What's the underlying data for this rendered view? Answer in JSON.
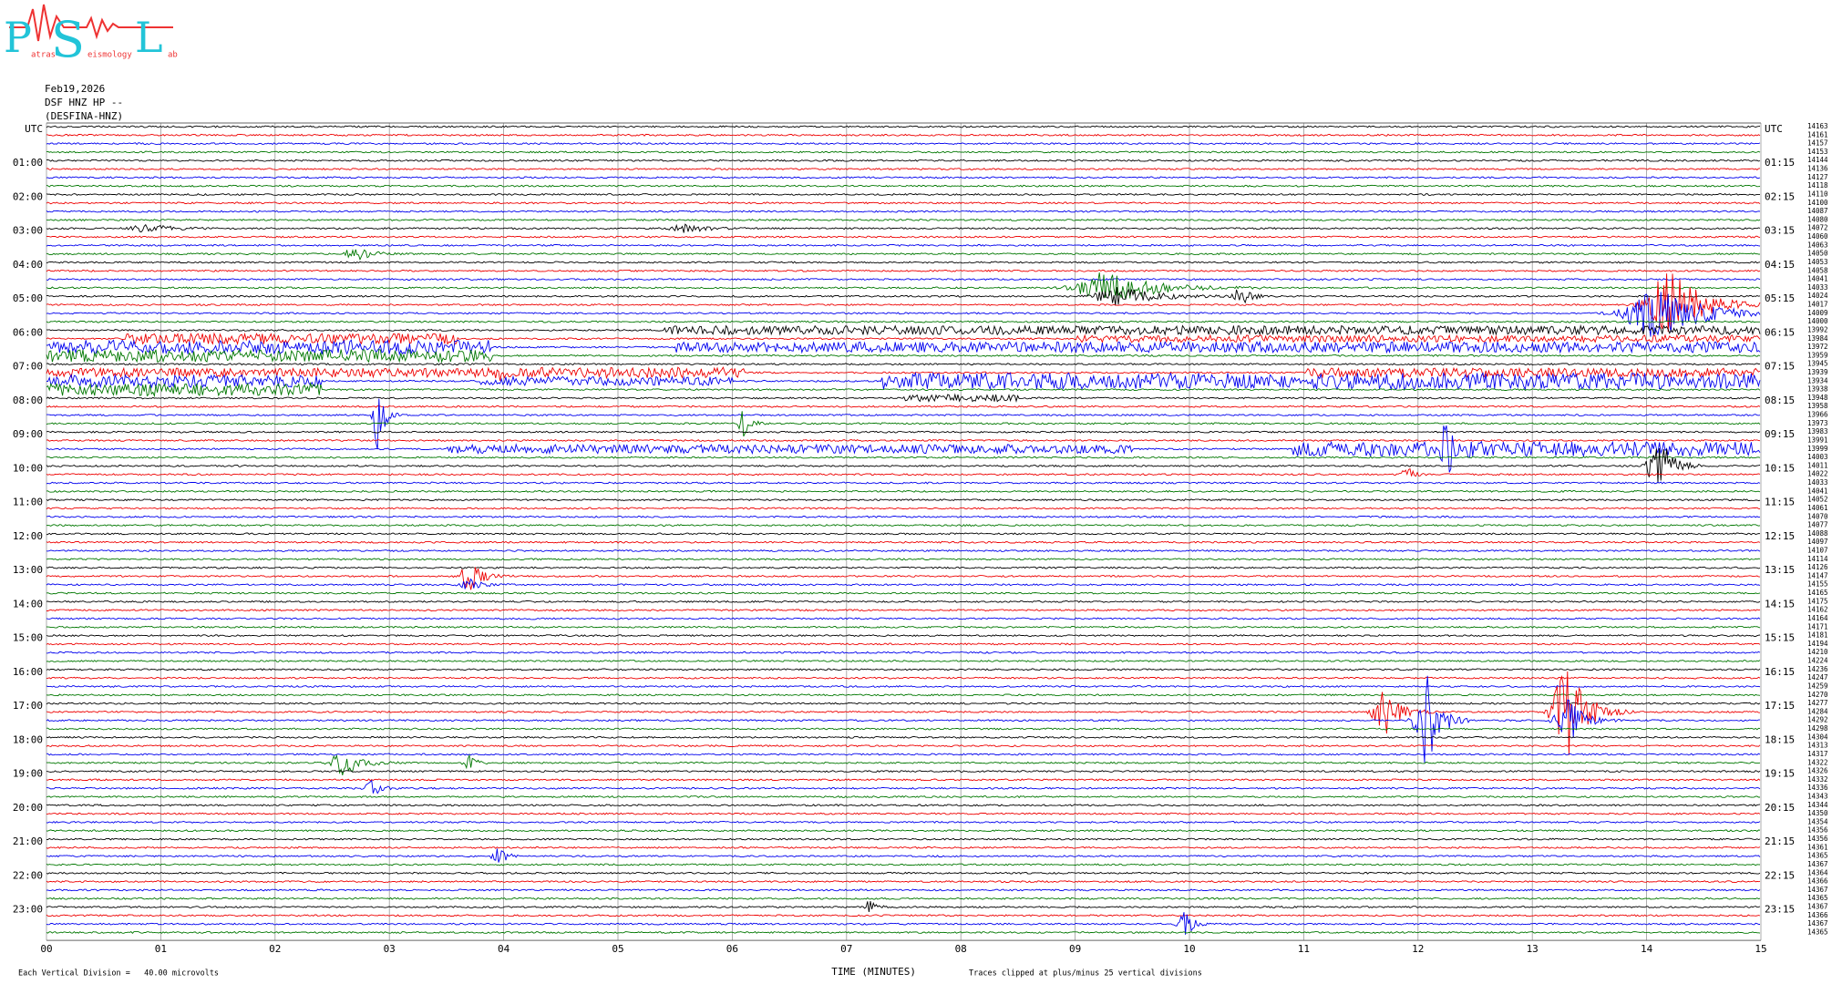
{
  "logo": {
    "big": [
      "P",
      "S",
      "L"
    ],
    "small": [
      "atras",
      "eismology",
      "ab"
    ]
  },
  "header": {
    "date": "Feb19,2026",
    "station": "DSF HNZ HP --",
    "name": "(DESFINA-HNZ)"
  },
  "left_labels": [
    "UTC",
    "01:00",
    "02:00",
    "03:00",
    "04:00",
    "05:00",
    "06:00",
    "07:00",
    "08:00",
    "09:00",
    "10:00",
    "11:00",
    "12:00",
    "13:00",
    "14:00",
    "15:00",
    "16:00",
    "17:00",
    "18:00",
    "19:00",
    "20:00",
    "21:00",
    "22:00",
    "23:00"
  ],
  "right_labels": [
    "UTC",
    "01:15",
    "02:15",
    "03:15",
    "04:15",
    "05:15",
    "06:15",
    "07:15",
    "08:15",
    "09:15",
    "10:15",
    "11:15",
    "12:15",
    "13:15",
    "14:15",
    "15:15",
    "16:15",
    "17:15",
    "18:15",
    "19:15",
    "20:15",
    "21:15",
    "22:15",
    "23:15"
  ],
  "row_counts": [
    "14163",
    "14161",
    "14157",
    "14153",
    "14144",
    "14136",
    "14127",
    "14118",
    "14110",
    "14100",
    "14087",
    "14080",
    "14072",
    "14060",
    "14063",
    "14050",
    "14053",
    "14058",
    "14041",
    "14033",
    "14024",
    "14017",
    "14009",
    "14000",
    "13992",
    "13984",
    "13972",
    "13959",
    "13945",
    "13939",
    "13934",
    "13938",
    "13948",
    "13958",
    "13966",
    "13973",
    "13983",
    "13991",
    "13999",
    "14003",
    "14011",
    "14022",
    "14033",
    "14041",
    "14052",
    "14061",
    "14070",
    "14077",
    "14088",
    "14097",
    "14107",
    "14114",
    "14126",
    "14147",
    "14155",
    "14165",
    "14175",
    "14162",
    "14164",
    "14171",
    "14181",
    "14194",
    "14210",
    "14224",
    "14236",
    "14247",
    "14259",
    "14270",
    "14277",
    "14284",
    "14292",
    "14298",
    "14304",
    "14313",
    "14317",
    "14322",
    "14326",
    "14332",
    "14336",
    "14343",
    "14344",
    "14350",
    "14354",
    "14356",
    "14356",
    "14361",
    "14365",
    "14367",
    "14364",
    "14366",
    "14367",
    "14365",
    "14367",
    "14366",
    "14367",
    "14365"
  ],
  "x_ticks": [
    "00",
    "01",
    "02",
    "03",
    "04",
    "05",
    "06",
    "07",
    "08",
    "09",
    "10",
    "11",
    "12",
    "13",
    "14",
    "15"
  ],
  "footer": {
    "division": "Each Vertical Division =   40.00 microvolts",
    "axis_title": "TIME (MINUTES)",
    "clip_note": "Traces clipped at plus/minus 25 vertical divisions"
  }
}
